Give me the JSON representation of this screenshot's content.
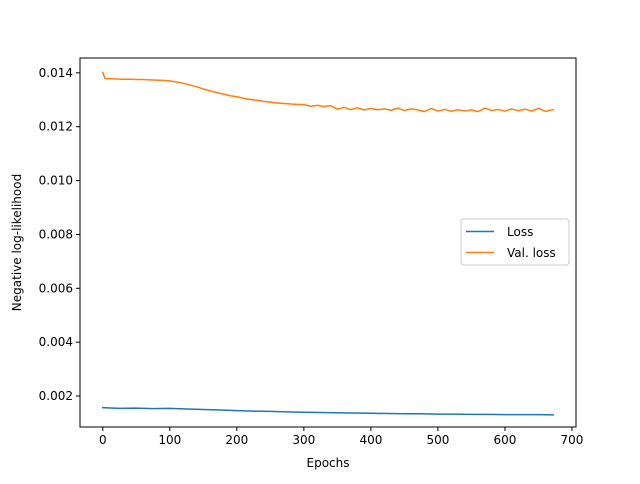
{
  "chart_data": {
    "type": "line",
    "title": "",
    "xlabel": "Epochs",
    "ylabel": "Negative log-likelihood",
    "xlim": [
      -34,
      706
    ],
    "ylim": [
      0.00085,
      0.01455
    ],
    "xticks": [
      0,
      100,
      200,
      300,
      400,
      500,
      600,
      700
    ],
    "yticks": [
      0.002,
      0.004,
      0.006,
      0.008,
      0.01,
      0.012,
      0.014
    ],
    "ytick_labels": [
      "0.002",
      "0.004",
      "0.006",
      "0.008",
      "0.010",
      "0.012",
      "0.014"
    ],
    "grid": false,
    "legend": {
      "placement": "center-right"
    },
    "series": [
      {
        "name": "Loss",
        "color": "#1f77b4",
        "x": [
          0,
          25,
          50,
          75,
          100,
          125,
          150,
          175,
          200,
          225,
          250,
          275,
          300,
          325,
          350,
          375,
          400,
          425,
          450,
          475,
          500,
          525,
          550,
          575,
          600,
          625,
          650,
          672
        ],
        "y": [
          0.00157,
          0.00154,
          0.00155,
          0.00153,
          0.00154,
          0.00152,
          0.0015,
          0.00148,
          0.00146,
          0.00144,
          0.00143,
          0.00141,
          0.0014,
          0.00139,
          0.00138,
          0.00137,
          0.00136,
          0.00135,
          0.00134,
          0.00134,
          0.00133,
          0.00133,
          0.00132,
          0.00132,
          0.00131,
          0.00131,
          0.00131,
          0.0013
        ]
      },
      {
        "name": "Val. loss",
        "color": "#ff7f0e",
        "x": [
          0,
          3,
          6,
          10,
          20,
          30,
          40,
          50,
          60,
          70,
          80,
          90,
          100,
          110,
          120,
          130,
          140,
          150,
          160,
          170,
          180,
          190,
          200,
          210,
          220,
          230,
          240,
          250,
          260,
          270,
          280,
          290,
          300,
          310,
          320,
          330,
          340,
          350,
          360,
          370,
          380,
          390,
          400,
          410,
          420,
          430,
          440,
          450,
          460,
          470,
          480,
          490,
          500,
          510,
          520,
          530,
          540,
          550,
          560,
          570,
          580,
          590,
          600,
          610,
          620,
          630,
          640,
          650,
          660,
          672
        ],
        "y": [
          0.01401,
          0.0138,
          0.01378,
          0.01379,
          0.01377,
          0.01376,
          0.01376,
          0.01375,
          0.01375,
          0.01374,
          0.01373,
          0.01372,
          0.0137,
          0.01366,
          0.01361,
          0.01355,
          0.01348,
          0.0134,
          0.01333,
          0.01327,
          0.01321,
          0.01315,
          0.01311,
          0.01305,
          0.01301,
          0.01298,
          0.01294,
          0.01291,
          0.01288,
          0.01286,
          0.01284,
          0.01283,
          0.01282,
          0.01276,
          0.01279,
          0.01275,
          0.01278,
          0.01265,
          0.01272,
          0.01263,
          0.0127,
          0.01262,
          0.01268,
          0.01263,
          0.01266,
          0.01261,
          0.01269,
          0.0126,
          0.01266,
          0.01262,
          0.01256,
          0.01268,
          0.01258,
          0.01264,
          0.01257,
          0.01263,
          0.01258,
          0.01262,
          0.01256,
          0.01269,
          0.0126,
          0.01264,
          0.01258,
          0.01266,
          0.01259,
          0.01265,
          0.01258,
          0.01268,
          0.01257,
          0.01263
        ]
      }
    ]
  }
}
